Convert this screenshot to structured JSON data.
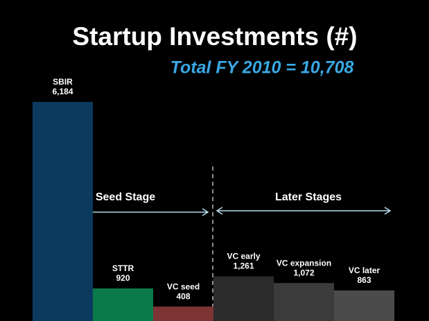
{
  "chart_data": {
    "type": "bar",
    "title": "Startup Investments (#)",
    "subtitle": "Total FY 2010 = 10,708",
    "annotations": [
      "Seed Stage",
      "Later Stages"
    ],
    "categories": [
      "SBIR",
      "STTR",
      "VC seed",
      "VC early",
      "VC expansion",
      "VC later"
    ],
    "values": [
      6184,
      920,
      408,
      1261,
      1072,
      863
    ],
    "value_labels": [
      "6,184",
      "920",
      "408",
      "1,261",
      "1,072",
      "863"
    ],
    "colors": [
      "#0c3a5e",
      "#0b7a4b",
      "#7c3434",
      "#2b2b2b",
      "#3b3b3b",
      "#4b4b4b"
    ]
  }
}
